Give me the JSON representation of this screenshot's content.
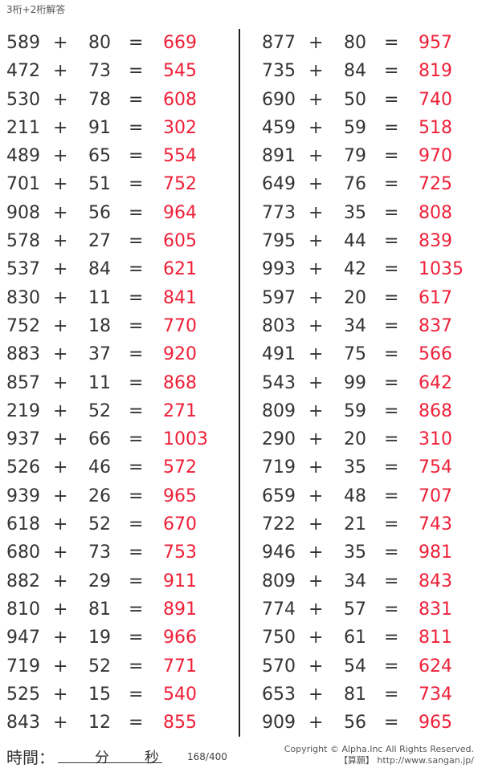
{
  "title": "3桁+2桁解答",
  "operator": "+",
  "equals": "=",
  "colors": {
    "answer": "#ee2038",
    "text": "#333333"
  },
  "left_column": [
    [
      "589",
      "80",
      "669"
    ],
    [
      "472",
      "73",
      "545"
    ],
    [
      "530",
      "78",
      "608"
    ],
    [
      "211",
      "91",
      "302"
    ],
    [
      "489",
      "65",
      "554"
    ],
    [
      "701",
      "51",
      "752"
    ],
    [
      "908",
      "56",
      "964"
    ],
    [
      "578",
      "27",
      "605"
    ],
    [
      "537",
      "84",
      "621"
    ],
    [
      "830",
      "11",
      "841"
    ],
    [
      "752",
      "18",
      "770"
    ],
    [
      "883",
      "37",
      "920"
    ],
    [
      "857",
      "11",
      "868"
    ],
    [
      "219",
      "52",
      "271"
    ],
    [
      "937",
      "66",
      "1003"
    ],
    [
      "526",
      "46",
      "572"
    ],
    [
      "939",
      "26",
      "965"
    ],
    [
      "618",
      "52",
      "670"
    ],
    [
      "680",
      "73",
      "753"
    ],
    [
      "882",
      "29",
      "911"
    ],
    [
      "810",
      "81",
      "891"
    ],
    [
      "947",
      "19",
      "966"
    ],
    [
      "719",
      "52",
      "771"
    ],
    [
      "525",
      "15",
      "540"
    ],
    [
      "843",
      "12",
      "855"
    ]
  ],
  "right_column": [
    [
      "877",
      "80",
      "957"
    ],
    [
      "735",
      "84",
      "819"
    ],
    [
      "690",
      "50",
      "740"
    ],
    [
      "459",
      "59",
      "518"
    ],
    [
      "891",
      "79",
      "970"
    ],
    [
      "649",
      "76",
      "725"
    ],
    [
      "773",
      "35",
      "808"
    ],
    [
      "795",
      "44",
      "839"
    ],
    [
      "993",
      "42",
      "1035"
    ],
    [
      "597",
      "20",
      "617"
    ],
    [
      "803",
      "34",
      "837"
    ],
    [
      "491",
      "75",
      "566"
    ],
    [
      "543",
      "99",
      "642"
    ],
    [
      "809",
      "59",
      "868"
    ],
    [
      "290",
      "20",
      "310"
    ],
    [
      "719",
      "35",
      "754"
    ],
    [
      "659",
      "48",
      "707"
    ],
    [
      "722",
      "21",
      "743"
    ],
    [
      "946",
      "35",
      "981"
    ],
    [
      "809",
      "34",
      "843"
    ],
    [
      "774",
      "57",
      "831"
    ],
    [
      "750",
      "61",
      "811"
    ],
    [
      "570",
      "54",
      "624"
    ],
    [
      "653",
      "81",
      "734"
    ],
    [
      "909",
      "56",
      "965"
    ]
  ],
  "footer": {
    "time_label": "時間：",
    "minutes_label": "分",
    "seconds_label": "秒",
    "page": "168/400",
    "copyright": "Copyright © Alpha.Inc All Rights Reserved.",
    "site": "【算願】 http://www.sangan.jp/"
  }
}
